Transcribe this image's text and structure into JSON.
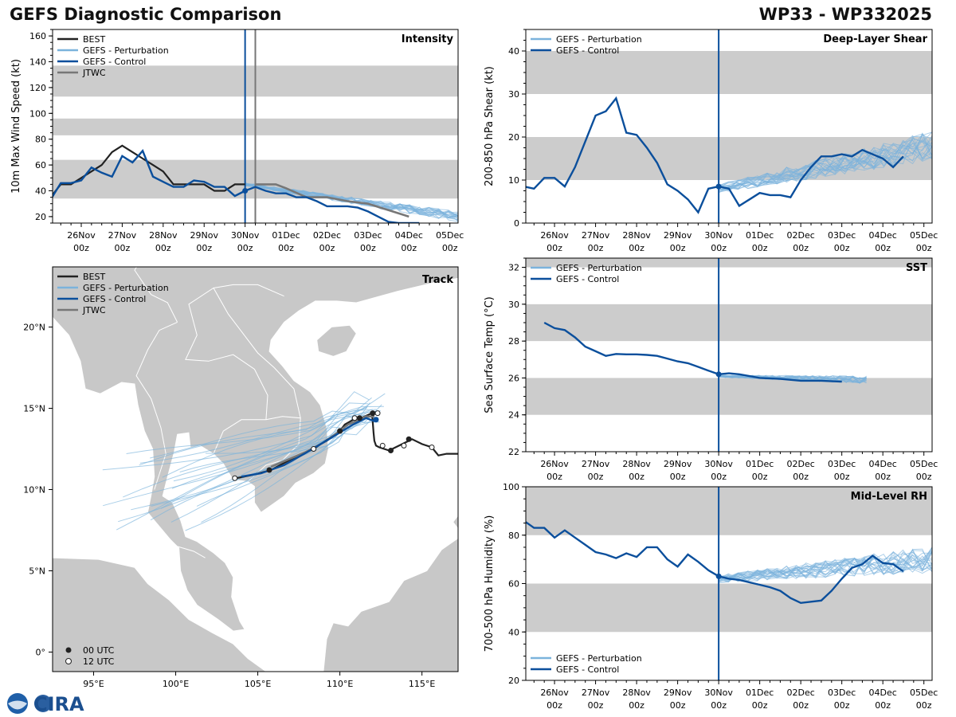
{
  "header": {
    "title_left": "GEFS Diagnostic Comparison",
    "title_right": "WP33 - WP332025"
  },
  "time_ticks": [
    {
      "d": "26Nov",
      "h": "00z"
    },
    {
      "d": "27Nov",
      "h": "00z"
    },
    {
      "d": "28Nov",
      "h": "00z"
    },
    {
      "d": "29Nov",
      "h": "00z"
    },
    {
      "d": "30Nov",
      "h": "00z"
    },
    {
      "d": "01Dec",
      "h": "00z"
    },
    {
      "d": "02Dec",
      "h": "00z"
    },
    {
      "d": "03Dec",
      "h": "00z"
    },
    {
      "d": "04Dec",
      "h": "00z"
    },
    {
      "d": "05Dec",
      "h": "00z"
    }
  ],
  "colors": {
    "best": "#222222",
    "pert": "#7bb3dc",
    "control": "#0b4f9c",
    "jtwc": "#777777",
    "band": "#cccccc",
    "land": "#c8c8c8",
    "ocean": "#ffffff"
  },
  "legend": {
    "best": "BEST",
    "pert": "GEFS - Perturbation",
    "control": "GEFS - Control",
    "jtwc": "JTWC",
    "utc00": "00 UTC",
    "utc12": "12 UTC"
  },
  "logo_text": "CIRA",
  "chart_data": [
    {
      "id": "intensity",
      "type": "line",
      "title": "Intensity",
      "ylabel": "10m Max Wind Speed (kt)",
      "xlim": [
        -4.7,
        5.2
      ],
      "ylim": [
        15,
        165
      ],
      "yticks": [
        "20",
        "40",
        "60",
        "80",
        "100",
        "120",
        "140",
        "160"
      ],
      "bands": [
        [
          34,
          64
        ],
        [
          83,
          96
        ],
        [
          113,
          137
        ]
      ],
      "vlines": [
        {
          "x": 0,
          "color": "control"
        },
        {
          "x": 0.25,
          "color": "jtwc"
        }
      ],
      "best": {
        "x": [
          -4.75,
          -4.5,
          -4.25,
          -4,
          -3.75,
          -3.5,
          -3.25,
          -3,
          -2.75,
          -2.5,
          -2.25,
          -2,
          -1.75,
          -1.5,
          -1.25,
          -1,
          -0.75,
          -0.5,
          -0.25,
          0
        ],
        "y": [
          35,
          45,
          45,
          50,
          55,
          60,
          70,
          75,
          70,
          65,
          60,
          55,
          45,
          45,
          45,
          45,
          40,
          40,
          45,
          45
        ]
      },
      "control": {
        "x": [
          -4.75,
          -4.5,
          -4.25,
          -4,
          -3.75,
          -3.5,
          -3.25,
          -3,
          -2.75,
          -2.5,
          -2.25,
          -2,
          -1.75,
          -1.5,
          -1.25,
          -1,
          -0.75,
          -0.5,
          -0.25,
          0,
          0.25,
          0.5,
          0.75,
          1,
          1.25,
          1.5,
          1.75,
          2,
          2.25,
          2.5,
          2.75,
          3,
          3.25,
          3.5,
          3.75,
          4,
          4.25
        ],
        "y": [
          33,
          46,
          46,
          48,
          58,
          54,
          51,
          67,
          62,
          71,
          51,
          47,
          43,
          43,
          48,
          47,
          43,
          43,
          36,
          40,
          43,
          40,
          38,
          38,
          35,
          35,
          32,
          28,
          28,
          28,
          27,
          24,
          20,
          16,
          15,
          15,
          15
        ]
      },
      "jtwc": {
        "x": [
          0.25,
          0.5,
          0.75,
          1,
          1.5,
          2,
          2.5,
          3,
          3.5,
          4
        ],
        "y": [
          45,
          45,
          45,
          42,
          35,
          35,
          32,
          30,
          25,
          20
        ]
      },
      "control_marker": {
        "x": 0,
        "y": 40
      },
      "pert_seed": 1,
      "pert_n": 20,
      "pert_start": 0,
      "pert_end": 5.2,
      "pert_y0": 45,
      "pert_y1": 20,
      "pert_spread": 6
    },
    {
      "id": "shear",
      "type": "line",
      "title": "Deep-Layer Shear",
      "ylabel": "200-850 hPa Shear (kt)",
      "xlim": [
        -4.7,
        5.2
      ],
      "ylim": [
        0,
        45
      ],
      "yticks": [
        "0",
        "10",
        "20",
        "30",
        "40"
      ],
      "bands": [
        [
          10,
          20
        ],
        [
          30,
          40
        ]
      ],
      "vlines": [
        {
          "x": 0,
          "color": "control"
        }
      ],
      "control": {
        "x": [
          -4.75,
          -4.5,
          -4.25,
          -4,
          -3.75,
          -3.5,
          -3.25,
          -3,
          -2.75,
          -2.5,
          -2.25,
          -2,
          -1.75,
          -1.5,
          -1.25,
          -1,
          -0.75,
          -0.5,
          -0.25,
          0,
          0.25,
          0.5,
          0.75,
          1,
          1.25,
          1.5,
          1.75,
          2,
          2.25,
          2.5,
          2.75,
          3,
          3.25,
          3.5,
          3.75,
          4,
          4.25,
          4.5
        ],
        "y": [
          8.5,
          8,
          10.5,
          10.5,
          8.5,
          13,
          19,
          25,
          26,
          29,
          21,
          20.5,
          17.5,
          14,
          9,
          7.5,
          5.5,
          2.5,
          8,
          8.5,
          8,
          4,
          5.5,
          7,
          6.5,
          6.5,
          6,
          10,
          13,
          15.5,
          15.5,
          16,
          15.5,
          17,
          16,
          15,
          13,
          15.5
        ]
      },
      "control_marker": {
        "x": 0,
        "y": 8.5
      },
      "pert_seed": 7,
      "pert_n": 22,
      "pert_start": 0,
      "pert_end": 5.2,
      "pert_y0": 8,
      "pert_y1": 18,
      "pert_spread": 5
    },
    {
      "id": "sst",
      "type": "line",
      "title": "SST",
      "ylabel": "Sea Surface Temp (°C)",
      "xlim": [
        -4.7,
        5.2
      ],
      "ylim": [
        22,
        32.5
      ],
      "yticks": [
        "22",
        "24",
        "26",
        "28",
        "30",
        "32"
      ],
      "bands": [
        [
          24,
          26
        ],
        [
          28,
          30
        ],
        [
          32,
          33
        ]
      ],
      "vlines": [
        {
          "x": 0,
          "color": "control"
        }
      ],
      "control": {
        "x": [
          -4.25,
          -4,
          -3.75,
          -3.5,
          -3.25,
          -3,
          -2.75,
          -2.5,
          -2.25,
          -2,
          -1.75,
          -1.5,
          -1.25,
          -1,
          -0.75,
          -0.5,
          -0.25,
          0,
          0.25,
          0.5,
          0.75,
          1,
          1.5,
          2,
          2.5,
          3
        ],
        "y": [
          29,
          28.7,
          28.6,
          28.2,
          27.7,
          27.45,
          27.2,
          27.3,
          27.28,
          27.28,
          27.25,
          27.2,
          27.05,
          26.9,
          26.8,
          26.6,
          26.4,
          26.2,
          26.25,
          26.2,
          26.1,
          26.0,
          25.95,
          25.85,
          25.85,
          25.8
        ]
      },
      "control_marker": {
        "x": 0,
        "y": 26.2
      },
      "pert_seed": 13,
      "pert_n": 18,
      "pert_start": 0,
      "pert_end": 3.6,
      "pert_y0": 26.1,
      "pert_y1": 25.9,
      "pert_spread": 0.3
    },
    {
      "id": "rh",
      "type": "line",
      "title": "Mid-Level RH",
      "ylabel": "700-500 hPa Humidity (%)",
      "xlim": [
        -4.7,
        5.2
      ],
      "ylim": [
        20,
        100
      ],
      "yticks": [
        "20",
        "40",
        "60",
        "80",
        "100"
      ],
      "bands": [
        [
          40,
          60
        ],
        [
          80,
          100
        ]
      ],
      "vlines": [
        {
          "x": 0,
          "color": "control"
        }
      ],
      "control": {
        "x": [
          -4.75,
          -4.5,
          -4.25,
          -4,
          -3.75,
          -3.5,
          -3.25,
          -3,
          -2.75,
          -2.5,
          -2.25,
          -2,
          -1.75,
          -1.5,
          -1.25,
          -1,
          -0.75,
          -0.5,
          -0.25,
          0,
          0.25,
          0.5,
          0.75,
          1,
          1.25,
          1.5,
          1.75,
          2,
          2.25,
          2.5,
          2.75,
          3,
          3.25,
          3.5,
          3.75,
          4,
          4.25,
          4.5
        ],
        "y": [
          86,
          83,
          83,
          79,
          82,
          79,
          76,
          73,
          72,
          70.5,
          72.5,
          71,
          75,
          75,
          70,
          67,
          72,
          69,
          65.5,
          63,
          62,
          61.5,
          60.5,
          59.5,
          58.5,
          57,
          54,
          52,
          52.5,
          53,
          57,
          62,
          66.5,
          68,
          71.5,
          68.5,
          68,
          65
        ]
      },
      "control_marker": {
        "x": 0,
        "y": 63
      },
      "pert_seed": 21,
      "pert_n": 22,
      "pert_start": 0,
      "pert_end": 5.2,
      "pert_y0": 62,
      "pert_y1": 70,
      "pert_spread": 8
    },
    {
      "id": "track",
      "type": "scatter",
      "title": "Track",
      "xlim": [
        92.5,
        117.2
      ],
      "ylim": [
        -1.2,
        23.7
      ],
      "xticks": [
        {
          "v": 95,
          "l": "95°E"
        },
        {
          "v": 100,
          "l": "100°E"
        },
        {
          "v": 105,
          "l": "105°E"
        },
        {
          "v": 110,
          "l": "110°E"
        },
        {
          "v": 115,
          "l": "115°E"
        }
      ],
      "yticks": [
        {
          "v": 0,
          "l": "0°"
        },
        {
          "v": 5,
          "l": "5°N"
        },
        {
          "v": 10,
          "l": "10°N"
        },
        {
          "v": 15,
          "l": "15°N"
        },
        {
          "v": 20,
          "l": "20°N"
        }
      ],
      "best": {
        "lon": [
          117.2,
          116.5,
          116,
          115.6,
          115,
          114.4,
          114.2,
          113.6,
          113,
          112.4,
          112.2,
          112.1,
          112.05,
          112.0,
          111.95,
          111.3,
          111,
          110.3,
          110,
          108.4,
          107.1,
          105.8,
          104.7,
          103.7
        ],
        "lat": [
          12.2,
          12.2,
          12.1,
          12.6,
          12.8,
          13.1,
          13.0,
          12.7,
          12.4,
          12.6,
          12.7,
          13.0,
          13.5,
          14.2,
          14.7,
          14.4,
          14.4,
          14.0,
          13.6,
          12.5,
          11.9,
          11.2,
          10.9,
          10.7
        ]
      },
      "best_markers": [
        {
          "lon": 114.2,
          "lat": 13.1,
          "k": 0
        },
        {
          "lon": 113.1,
          "lat": 12.4,
          "k": 0
        },
        {
          "lon": 112.0,
          "lat": 14.7,
          "k": 0
        },
        {
          "lon": 111.2,
          "lat": 14.4,
          "k": 0
        },
        {
          "lon": 110.0,
          "lat": 13.6,
          "k": 0
        },
        {
          "lon": 105.7,
          "lat": 11.2,
          "k": 0
        },
        {
          "lon": 115.6,
          "lat": 12.6,
          "k": 1
        },
        {
          "lon": 113.9,
          "lat": 12.7,
          "k": 1
        },
        {
          "lon": 112.6,
          "lat": 12.7,
          "k": 1
        },
        {
          "lon": 112.3,
          "lat": 14.7,
          "k": 1
        },
        {
          "lon": 110.9,
          "lat": 14.4,
          "k": 1
        },
        {
          "lon": 108.4,
          "lat": 12.5,
          "k": 1
        },
        {
          "lon": 103.6,
          "lat": 10.7,
          "k": 1
        }
      ],
      "control": {
        "lon": [
          112.1,
          111.6,
          110.8,
          109.5,
          108,
          106.6,
          105.2,
          104.0
        ],
        "lat": [
          14.2,
          14.4,
          14.0,
          13.2,
          12.3,
          11.5,
          11.0,
          10.8
        ]
      },
      "jtwc": {
        "lon": [
          112.1,
          111.6,
          110.5,
          109.2,
          107.9,
          106.5,
          105.8
        ],
        "lat": [
          14.5,
          14.5,
          14.0,
          13.0,
          12.3,
          11.7,
          11.4
        ]
      },
      "control_marker": {
        "lon": 112.2,
        "lat": 14.3
      }
    }
  ]
}
